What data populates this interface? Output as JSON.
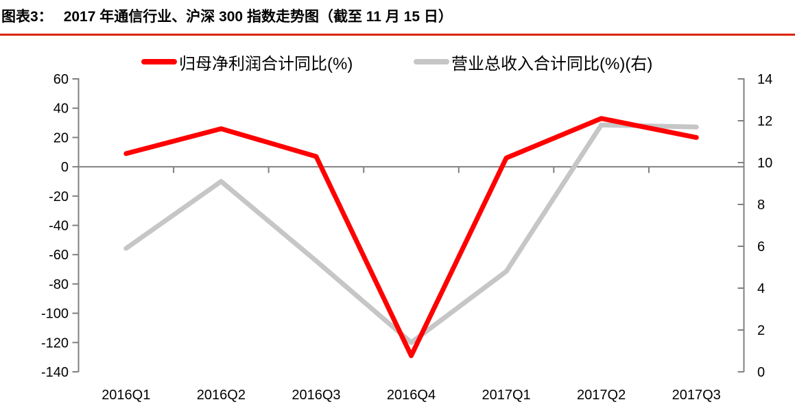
{
  "header": {
    "label": "图表3：",
    "title": "2017 年通信行业、沪深 300 指数走势图（截至 11 月 15 日）",
    "rule_color": "#d92400"
  },
  "legend": [
    {
      "name": "归母净利润合计同比(%)",
      "color": "#ff0000"
    },
    {
      "name": "营业总收入合计同比(%)(右)",
      "color": "#c6c6c6"
    }
  ],
  "colors": {
    "axis_line": "#808080",
    "tick_label": "#000000",
    "background": "#ffffff"
  },
  "chart_data": {
    "type": "line",
    "title": "2017 年通信行业、沪深 300 指数走势图（截至 11 月 15 日）",
    "categories": [
      "2016Q1",
      "2016Q2",
      "2016Q3",
      "2016Q4",
      "2017Q1",
      "2017Q2",
      "2017Q3"
    ],
    "series": [
      {
        "name": "归母净利润合计同比(%)",
        "axis": "left",
        "color": "#ff0000",
        "values": [
          9,
          26,
          7,
          -129,
          6,
          33,
          20
        ]
      },
      {
        "name": "营业总收入合计同比(%)(右)",
        "axis": "right",
        "color": "#c6c6c6",
        "values": [
          5.9,
          9.1,
          5.3,
          1.4,
          4.8,
          11.8,
          11.7
        ]
      }
    ],
    "left_axis": {
      "min": -140,
      "max": 60,
      "step": 20,
      "ticks": [
        60,
        40,
        20,
        0,
        -20,
        -40,
        -60,
        -80,
        -100,
        -120,
        -140
      ]
    },
    "right_axis": {
      "min": 0,
      "max": 14,
      "step": 2,
      "ticks": [
        14,
        12,
        10,
        8,
        6,
        4,
        2,
        0
      ]
    },
    "grid": false,
    "legend_position": "top",
    "x_axis_cross": 0
  }
}
